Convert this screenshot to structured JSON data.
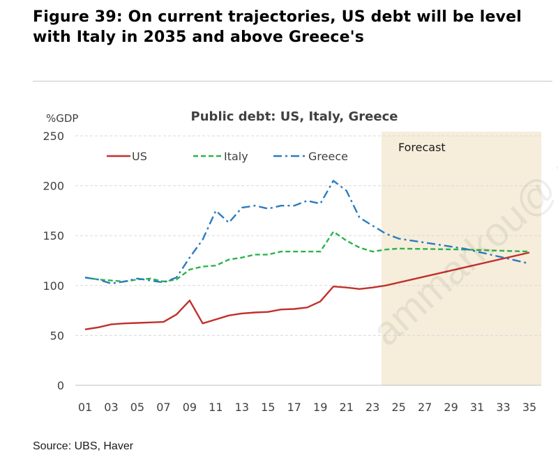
{
  "figure": {
    "title": "Figure 39: On current trajectories, US debt will be level with Italy in 2035 and above Greece's",
    "source": "Source: UBS, Haver",
    "watermark": "ammarkou@ m"
  },
  "chart_data": {
    "type": "line",
    "title": "Public debt: US, Italy, Greece",
    "ylabel": "%GDP",
    "xlabel": "",
    "ylim": [
      0,
      250
    ],
    "yticks": [
      0,
      50,
      100,
      150,
      200,
      250
    ],
    "xlim": [
      2001,
      2035
    ],
    "xticks": [
      "01",
      "03",
      "05",
      "07",
      "09",
      "11",
      "13",
      "15",
      "17",
      "19",
      "21",
      "23",
      "25",
      "27",
      "29",
      "31",
      "33",
      "35"
    ],
    "grid": "horizontal dashed",
    "legend_position": "top-left",
    "annotation": {
      "label": "Forecast",
      "x_start": 2024,
      "x_end": 2035,
      "color": "#f6eddb"
    },
    "series": [
      {
        "name": "US",
        "color": "#c0302b",
        "style": "solid",
        "x": [
          2001,
          2002,
          2003,
          2004,
          2005,
          2006,
          2007,
          2008,
          2009,
          2010,
          2011,
          2012,
          2013,
          2014,
          2015,
          2016,
          2017,
          2018,
          2019,
          2020,
          2021,
          2022,
          2023,
          2024,
          2035
        ],
        "values": [
          56,
          58,
          61,
          62,
          62.5,
          63,
          63.5,
          71,
          85,
          62,
          66,
          70,
          72,
          73,
          73.5,
          76,
          76.5,
          78,
          84,
          99,
          98,
          96.5,
          98,
          100,
          133
        ]
      },
      {
        "name": "Italy",
        "color": "#2bb34a",
        "style": "dashed",
        "x": [
          2001,
          2002,
          2003,
          2004,
          2005,
          2006,
          2007,
          2008,
          2009,
          2010,
          2011,
          2012,
          2013,
          2014,
          2015,
          2016,
          2017,
          2018,
          2019,
          2020,
          2021,
          2022,
          2023,
          2024,
          2025,
          2030,
          2035
        ],
        "values": [
          108,
          106,
          105,
          104,
          106,
          107,
          104,
          106,
          116,
          119,
          120,
          126,
          128,
          131,
          131,
          134,
          134,
          134,
          134,
          154,
          145,
          138,
          134,
          136,
          137,
          136,
          134
        ]
      },
      {
        "name": "Greece",
        "color": "#2a7bbf",
        "style": "dashdot",
        "x": [
          2001,
          2002,
          2003,
          2004,
          2005,
          2006,
          2007,
          2008,
          2009,
          2010,
          2011,
          2012,
          2013,
          2014,
          2015,
          2016,
          2017,
          2018,
          2019,
          2020,
          2021,
          2022,
          2023,
          2024,
          2025,
          2030,
          2035
        ],
        "values": [
          108,
          106,
          102,
          104,
          107,
          105,
          103,
          108,
          128,
          146,
          175,
          163,
          178,
          180,
          177,
          180,
          180,
          185,
          182,
          205,
          195,
          168,
          160,
          152,
          147,
          137,
          122
        ]
      }
    ]
  }
}
